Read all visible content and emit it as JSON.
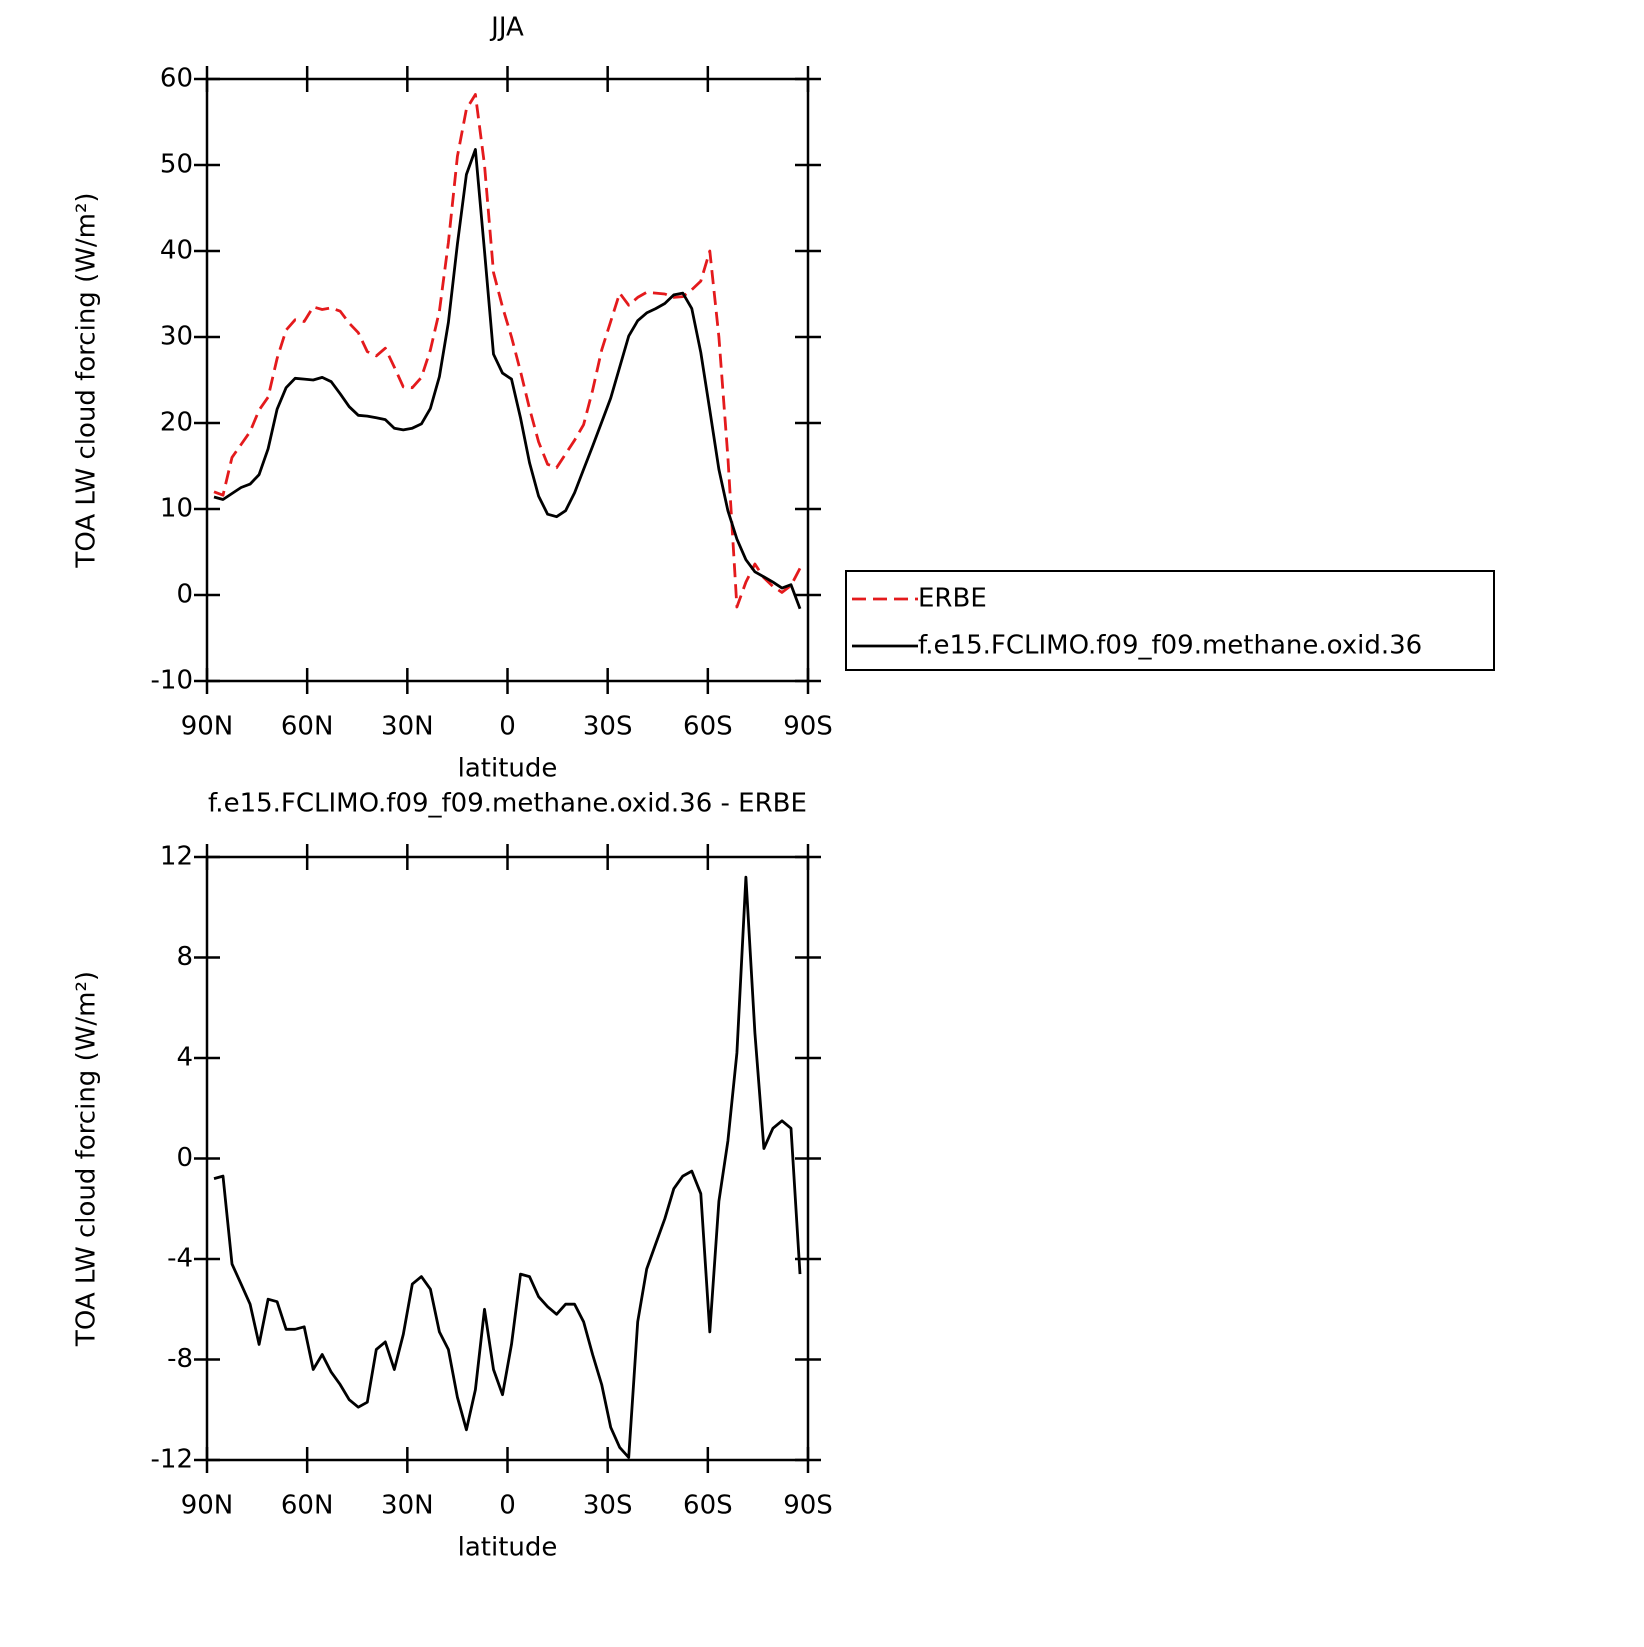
{
  "chart_data": [
    {
      "type": "line",
      "title": "JJA",
      "xlabel": "latitude",
      "ylabel": "TOA LW cloud forcing (W/m²)",
      "x": [
        87.9,
        85.2,
        82.5,
        79.8,
        77.1,
        74.4,
        71.7,
        69,
        66.3,
        63.6,
        60.9,
        58.2,
        55.5,
        52.8,
        50.1,
        47.4,
        44.7,
        42,
        39.3,
        36.6,
        33.9,
        31.2,
        28.5,
        25.8,
        23.1,
        20.4,
        17.7,
        15,
        12.3,
        9.6,
        6.9,
        4.2,
        1.5,
        -1.2,
        -3.9,
        -6.6,
        -9.3,
        -12,
        -14.7,
        -17.4,
        -20.1,
        -22.8,
        -25.5,
        -28.2,
        -30.9,
        -33.6,
        -36.3,
        -39,
        -41.7,
        -44.4,
        -47.1,
        -49.8,
        -52.5,
        -55.2,
        -57.9,
        -60.6,
        -63.3,
        -66,
        -68.7,
        -71.4,
        -74.1,
        -76.8,
        -79.5,
        -82.2,
        -84.9,
        -87.6
      ],
      "series": [
        {
          "name": "ERBE",
          "color": "#e41a1c",
          "dash": true,
          "values": [
            12,
            11.6,
            16,
            17.5,
            19,
            21.5,
            23,
            27.5,
            30.8,
            32,
            31.8,
            33.5,
            33.2,
            33.4,
            33,
            31.6,
            30.5,
            28.3,
            27.8,
            28.7,
            26.5,
            24.2,
            24.1,
            25.3,
            28.5,
            33,
            41,
            51,
            56.5,
            58.2,
            50,
            37.5,
            33.5,
            30,
            26,
            21.7,
            17.8,
            15.2,
            14.8,
            16.4,
            18,
            19.8,
            23.8,
            28.5,
            31.8,
            35.1,
            33.7,
            34.6,
            35.2,
            35.1,
            35,
            34.6,
            34.7,
            35.5,
            36.5,
            40,
            30,
            16,
            -1.4,
            1.5,
            3.6,
            2,
            1,
            0.3,
            1.1,
            3.1
          ]
        },
        {
          "name": "f.e15.FCLIMO.f09_f09.methane.oxid.36",
          "color": "#000000",
          "dash": false,
          "values": [
            11.4,
            11.1,
            11.8,
            12.5,
            12.9,
            14,
            17,
            21.6,
            24.1,
            25.2,
            25.1,
            25,
            25.3,
            24.8,
            23.4,
            21.9,
            20.9,
            20.8,
            20.6,
            20.4,
            19.4,
            19.2,
            19.4,
            19.9,
            21.7,
            25.4,
            31.7,
            40.8,
            48.9,
            51.8,
            40,
            28,
            25.8,
            25.1,
            20.6,
            15.4,
            11.5,
            9.4,
            9.1,
            9.8,
            11.9,
            14.6,
            17.3,
            20.1,
            22.9,
            26.5,
            30.1,
            31.9,
            32.8,
            33.3,
            33.9,
            34.9,
            35.1,
            33.3,
            28.2,
            21.5,
            14.6,
            9.8,
            6.5,
            4.1,
            2.7,
            2.1,
            1.5,
            0.8,
            1.2,
            -1.6
          ]
        }
      ],
      "xlim": [
        90,
        -90
      ],
      "xticks": [
        {
          "value": 90,
          "label": "90N"
        },
        {
          "value": 60,
          "label": "60N"
        },
        {
          "value": 30,
          "label": "30N"
        },
        0,
        {
          "value": -30,
          "label": "30S"
        },
        {
          "value": -60,
          "label": "60S"
        },
        {
          "value": -90,
          "label": "90S"
        }
      ],
      "ylim": [
        -10,
        60
      ],
      "yticks": [
        -10,
        0,
        10,
        20,
        30,
        40,
        50,
        60
      ],
      "legend": "outside right"
    },
    {
      "type": "line",
      "title": "f.e15.FCLIMO.f09_f09.methane.oxid.36 - ERBE",
      "xlabel": "latitude",
      "ylabel": "TOA LW cloud forcing (W/m²)",
      "x": [
        87.9,
        85.2,
        82.5,
        79.8,
        77.1,
        74.4,
        71.7,
        69,
        66.3,
        63.6,
        60.9,
        58.2,
        55.5,
        52.8,
        50.1,
        47.4,
        44.7,
        42,
        39.3,
        36.6,
        33.9,
        31.2,
        28.5,
        25.8,
        23.1,
        20.4,
        17.7,
        15,
        12.3,
        9.6,
        6.9,
        4.2,
        1.5,
        -1.2,
        -3.9,
        -6.6,
        -9.3,
        -12,
        -14.7,
        -17.4,
        -20.1,
        -22.8,
        -25.5,
        -28.2,
        -30.9,
        -33.6,
        -36.3,
        -39,
        -41.7,
        -44.4,
        -47.1,
        -49.8,
        -52.5,
        -55.2,
        -57.9,
        -60.6,
        -63.3,
        -66,
        -68.7,
        -71.4,
        -74.1,
        -76.8,
        -79.5,
        -82.2,
        -84.9,
        -87.6
      ],
      "series": [
        {
          "color": "#000000",
          "dash": false,
          "values": [
            -0.8,
            -0.7,
            -4.2,
            -5,
            -5.8,
            -7.4,
            -5.6,
            -5.7,
            -6.8,
            -6.8,
            -6.7,
            -8.4,
            -7.8,
            -8.5,
            -9.0,
            -9.6,
            -9.9,
            -9.7,
            -7.6,
            -7.3,
            -8.4,
            -7,
            -5,
            -4.7,
            -5.2,
            -6.9,
            -7.6,
            -9.5,
            -10.8,
            -9.2,
            -6,
            -8.4,
            -9.4,
            -7.4,
            -4.6,
            -4.7,
            -5.5,
            -5.9,
            -6.2,
            -5.8,
            -5.8,
            -6.5,
            -7.8,
            -9,
            -10.7,
            -11.5,
            -11.9,
            -6.5,
            -4.4,
            -3.4,
            -2.4,
            -1.2,
            -0.7,
            -0.5,
            -1.4,
            -6.9,
            -1.7,
            0.7,
            4.2,
            11.2,
            5,
            0.4,
            1.2,
            1.5,
            1.2,
            -4.6
          ]
        }
      ],
      "xlim": [
        90,
        -90
      ],
      "xticks": [
        {
          "value": 90,
          "label": "90N"
        },
        {
          "value": 60,
          "label": "60N"
        },
        {
          "value": 30,
          "label": "30N"
        },
        0,
        {
          "value": -30,
          "label": "30S"
        },
        {
          "value": -60,
          "label": "60S"
        },
        {
          "value": -90,
          "label": "90S"
        }
      ],
      "ylim": [
        -12,
        12
      ],
      "yticks": [
        -12,
        -8,
        -4,
        0,
        4,
        8,
        12
      ]
    }
  ]
}
